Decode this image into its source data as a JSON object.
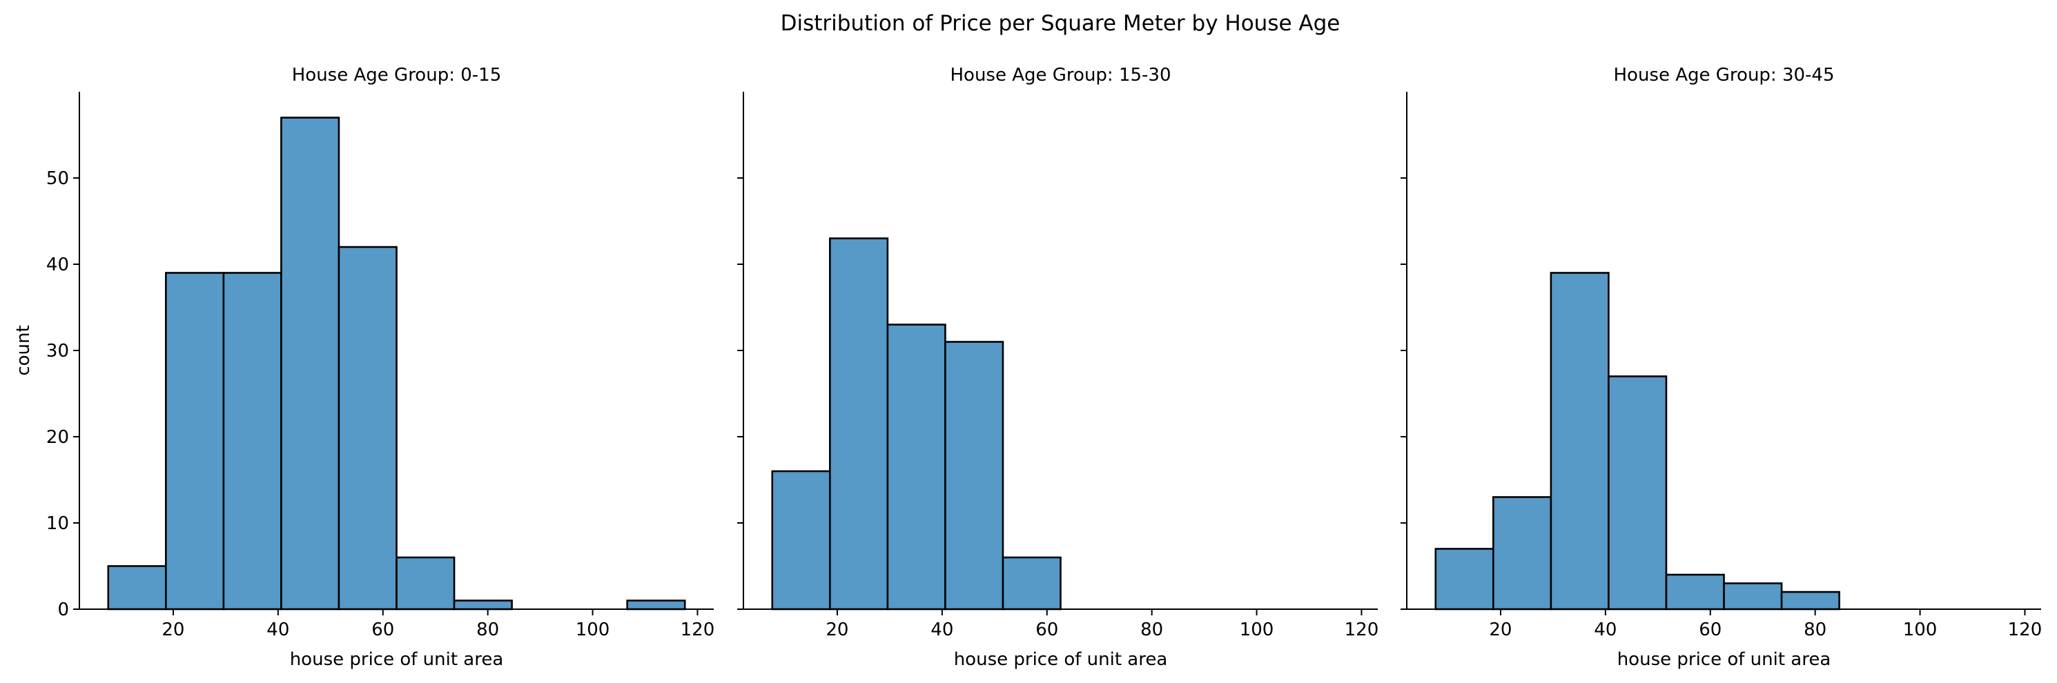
{
  "figure": {
    "title": "Distribution of Price per Square Meter by House Age"
  },
  "style": {
    "bar_fill": "#5799c7",
    "bar_edge": "#000000",
    "axis_color": "#000000"
  },
  "chart_data": [
    {
      "type": "bar",
      "title": "House Age Group: 0-15",
      "xlabel": "house price of unit area",
      "ylabel": "count",
      "bin_edges": [
        7.6,
        18.6,
        29.6,
        40.6,
        51.6,
        62.6,
        73.6,
        84.6,
        95.6,
        106.6,
        117.6
      ],
      "values": [
        5,
        39,
        39,
        57,
        42,
        6,
        1,
        0,
        0,
        1
      ],
      "xlim": [
        2.1,
        123.1
      ],
      "ylim": [
        0,
        60
      ],
      "xticks": [
        20,
        40,
        60,
        80,
        100,
        120
      ],
      "yticks": [
        0,
        10,
        20,
        30,
        40,
        50
      ],
      "grid": false,
      "show_ytick_labels": true
    },
    {
      "type": "bar",
      "title": "House Age Group: 15-30",
      "xlabel": "house price of unit area",
      "ylabel": "",
      "bin_edges": [
        7.6,
        18.6,
        29.6,
        40.6,
        51.6,
        62.6
      ],
      "values": [
        16,
        43,
        33,
        31,
        6
      ],
      "xlim": [
        2.1,
        123.1
      ],
      "ylim": [
        0,
        60
      ],
      "xticks": [
        20,
        40,
        60,
        80,
        100,
        120
      ],
      "yticks": [
        0,
        10,
        20,
        30,
        40,
        50
      ],
      "grid": false,
      "show_ytick_labels": false
    },
    {
      "type": "bar",
      "title": "House Age Group: 30-45",
      "xlabel": "house price of unit area",
      "ylabel": "",
      "bin_edges": [
        7.6,
        18.6,
        29.6,
        40.6,
        51.6,
        62.6,
        73.6,
        84.6
      ],
      "values": [
        7,
        13,
        39,
        27,
        4,
        3,
        2
      ],
      "xlim": [
        2.1,
        123.1
      ],
      "ylim": [
        0,
        60
      ],
      "xticks": [
        20,
        40,
        60,
        80,
        100,
        120
      ],
      "yticks": [
        0,
        10,
        20,
        30,
        40,
        50
      ],
      "grid": false,
      "show_ytick_labels": false
    }
  ]
}
